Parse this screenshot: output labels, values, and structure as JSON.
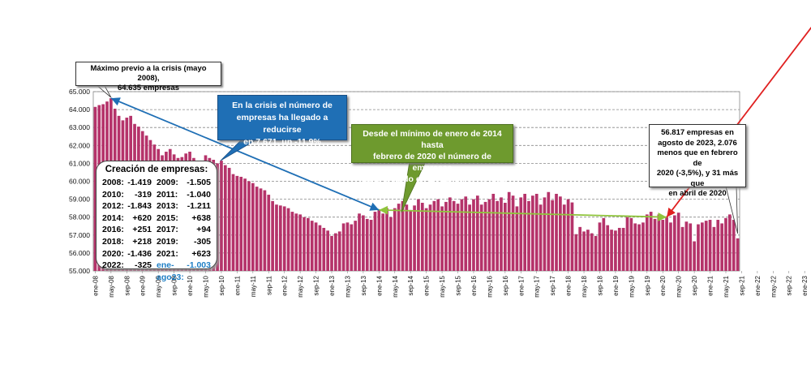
{
  "chart_data": {
    "type": "bar",
    "title": "",
    "xlabel": "",
    "ylabel": "",
    "ylim": [
      55000,
      65000
    ],
    "yticks": [
      "55.000",
      "56.000",
      "57.000",
      "58.000",
      "59.000",
      "60.000",
      "61.000",
      "62.000",
      "63.000",
      "64.000",
      "65.000"
    ],
    "x_tick_labels": [
      "ene-08",
      "may-08",
      "sep-08",
      "ene-09",
      "may-09",
      "sep-09",
      "ene-10",
      "may-10",
      "sep-10",
      "ene-11",
      "may-11",
      "sep-11",
      "ene-12",
      "may-12",
      "sep-12",
      "ene-13",
      "may-13",
      "sep-13",
      "ene-14",
      "may-14",
      "sep-14",
      "ene-15",
      "may-15",
      "sep-15",
      "ene-16",
      "may-16",
      "sep-16",
      "ene-17",
      "may-17",
      "sep-17",
      "ene-18",
      "may-18",
      "sep-18",
      "ene-19",
      "may-19",
      "sep-19",
      "ene-20",
      "may-20",
      "sep-20",
      "ene-21",
      "may-21",
      "sep-21",
      "ene-22",
      "may-22",
      "sep-22",
      "ene-23",
      "may-23"
    ],
    "series": [
      {
        "name": "Empresas",
        "color": "#b5336a",
        "start": "ene-08",
        "values": [
          64150,
          64250,
          64300,
          64450,
          64635,
          64050,
          63650,
          63400,
          63550,
          63650,
          63200,
          63050,
          62800,
          62550,
          62300,
          62050,
          61800,
          61450,
          61650,
          61800,
          61500,
          61300,
          61350,
          61550,
          61650,
          61300,
          61050,
          60800,
          61450,
          61300,
          61200,
          61000,
          61150,
          60900,
          60750,
          60400,
          60300,
          60250,
          60150,
          60000,
          59900,
          59700,
          59600,
          59500,
          59250,
          58900,
          58700,
          58650,
          58600,
          58500,
          58300,
          58200,
          58150,
          58000,
          57950,
          57800,
          57700,
          57550,
          57400,
          57250,
          56950,
          57100,
          57200,
          57650,
          57700,
          57600,
          57800,
          58200,
          58100,
          57900,
          57850,
          58300,
          58400,
          58200,
          58500,
          58000,
          58500,
          58750,
          58900,
          58700,
          58400,
          58650,
          59000,
          58800,
          58500,
          58700,
          58900,
          59000,
          58600,
          58850,
          59100,
          58900,
          58750,
          59000,
          59150,
          58700,
          59000,
          59200,
          58700,
          58850,
          59000,
          59300,
          58900,
          59100,
          58800,
          59400,
          59200,
          58600,
          59100,
          59300,
          58900,
          59200,
          59300,
          58700,
          59100,
          59400,
          58950,
          59300,
          59150,
          58700,
          59000,
          58820,
          57050,
          57450,
          57200,
          57300,
          57100,
          56950,
          57700,
          57950,
          57550,
          57300,
          57250,
          57400,
          57400,
          58000,
          57950,
          57650,
          57600,
          57700,
          58150,
          58300,
          57900,
          58150,
          57850,
          58000,
          57700,
          58100,
          58250,
          57450,
          57750,
          57650,
          56650,
          57600,
          57700,
          57800,
          57850,
          57450,
          57850,
          57650,
          57950,
          58150,
          57850,
          56817
        ]
      }
    ],
    "trend_lines": [
      {
        "name": "crisis",
        "color": "#1f6fb5",
        "from": "may-08",
        "to": "ene-14"
      },
      {
        "name": "recuperacion",
        "color": "#8fc43c",
        "from": "ene-14",
        "to": "feb-20"
      },
      {
        "name": "reciente",
        "color": "#e02020",
        "from": "feb-20",
        "to": "ago-23"
      }
    ]
  },
  "annotations": {
    "peak": [
      "Máximo previo a la crisis (mayo 2008),",
      "64.635 empresas"
    ],
    "crisis": [
      "En la crisis el número de",
      "empresas ha llegado a reducirse",
      "en 7.671, un -11,9%"
    ],
    "growth": [
      "Desde el mínimo de enero de 2014 hasta",
      "febrero de 2020 el número de empresas",
      "había crecido en 1.929, un 3,4% más"
    ],
    "latest": [
      "56.817 empresas en",
      "agosto de 2023, 2.076",
      "menos que en febrero de",
      "2020 (-3,5%), y 31 más que",
      "en abril de 2020"
    ]
  },
  "creation_box": {
    "title": "Creación de empresas:",
    "rows": [
      [
        {
          "year": "2008:",
          "value": "-1.419"
        },
        {
          "year": "2009:",
          "value": "-1.505"
        }
      ],
      [
        {
          "year": "2010:",
          "value": "-319"
        },
        {
          "year": "2011:",
          "value": "-1.040"
        }
      ],
      [
        {
          "year": "2012:",
          "value": "-1.843"
        },
        {
          "year": "2013:",
          "value": "-1.211"
        }
      ],
      [
        {
          "year": "2014:",
          "value": "+620"
        },
        {
          "year": "2015:",
          "value": "+638"
        }
      ],
      [
        {
          "year": "2016:",
          "value": "+251"
        },
        {
          "year": "2017:",
          "value": "+94"
        }
      ],
      [
        {
          "year": "2018:",
          "value": "+218"
        },
        {
          "year": "2019:",
          "value": "-305"
        }
      ],
      [
        {
          "year": "2020:",
          "value": "-1.436"
        },
        {
          "year": "2021:",
          "value": "+623"
        }
      ]
    ],
    "last_row": {
      "year": "2022:",
      "value": "-325",
      "ytd_label": "ene-ago23:",
      "ytd_value": "-1.003"
    }
  }
}
